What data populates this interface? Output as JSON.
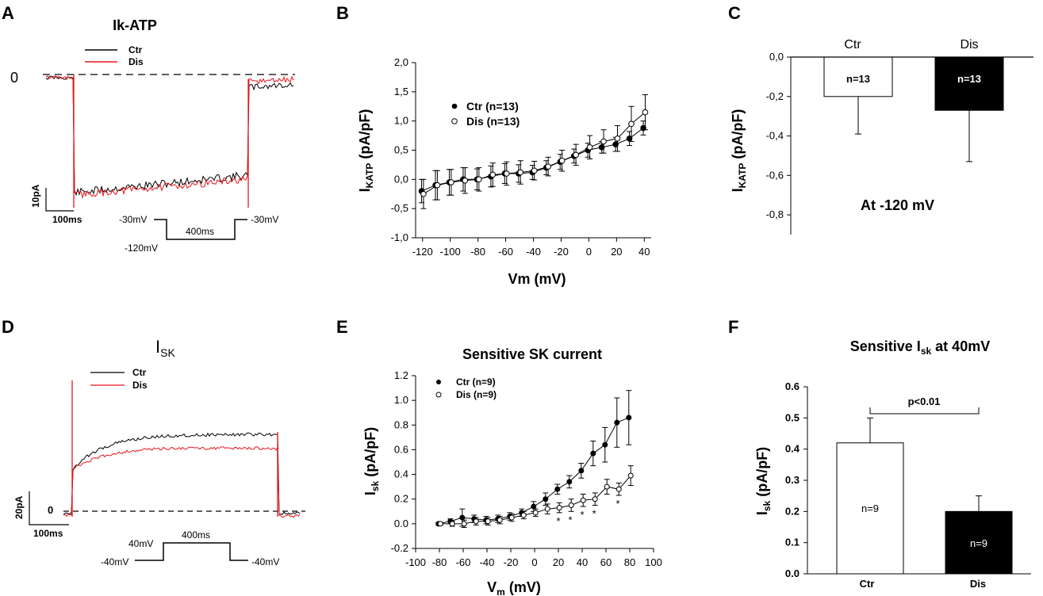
{
  "panel_labels": [
    "A",
    "B",
    "C",
    "D",
    "E",
    "F"
  ],
  "colors": {
    "ctr": "#000000",
    "dis": "#e8151b"
  },
  "traceA": {
    "title": "Ik-ATP",
    "zero_label": "0",
    "legend": [
      "Ctr",
      "Dis"
    ],
    "scale": {
      "y_label": "10pA",
      "x_label": "100ms"
    },
    "protocol": {
      "hold_left": "-30mV",
      "step": "-120mV",
      "duration": "400ms",
      "hold_right": "-30mV"
    }
  },
  "traceD": {
    "title": "I",
    "title_sub": "SK",
    "zero_label": "0",
    "legend": [
      "Ctr",
      "Dis"
    ],
    "scale": {
      "y_label": "20pA",
      "x_label": "100ms"
    },
    "protocol": {
      "step": "40mV",
      "duration": "400ms",
      "hold_left": "-40mV",
      "hold_right": "-40mV"
    }
  },
  "chart_data": [
    {
      "panel": "B",
      "type": "line",
      "title": "",
      "xlabel": "Vm (mV)",
      "ylabel_main": "I",
      "ylabel_sub": "KATP",
      "ylabel_unit": " (pA/pF)",
      "xlim": [
        -125,
        45
      ],
      "ylim": [
        -1.0,
        2.0
      ],
      "xticks": [
        -120,
        -100,
        -80,
        -60,
        -40,
        -20,
        0,
        20,
        40
      ],
      "yticks": [
        "-1,0",
        "-0,5",
        "0,0",
        "0,5",
        "1,0",
        "1,5",
        "2,0"
      ],
      "ytick_values": [
        -1.0,
        -0.5,
        0.0,
        0.5,
        1.0,
        1.5,
        2.0
      ],
      "x": [
        -120,
        -110,
        -100,
        -90,
        -80,
        -70,
        -60,
        -50,
        -40,
        -30,
        -20,
        -10,
        0,
        10,
        20,
        30,
        40
      ],
      "series": [
        {
          "name": "Ctr (n=13)",
          "marker": "filled",
          "values": [
            -0.2,
            -0.1,
            -0.05,
            0.0,
            0.0,
            0.05,
            0.1,
            0.1,
            0.12,
            0.2,
            0.3,
            0.4,
            0.5,
            0.55,
            0.6,
            0.7,
            0.88
          ],
          "errors": [
            0.2,
            0.25,
            0.22,
            0.2,
            0.18,
            0.18,
            0.17,
            0.15,
            0.12,
            0.12,
            0.13,
            0.12,
            0.12,
            0.1,
            0.12,
            0.12,
            0.12
          ]
        },
        {
          "name": "Dis (n=13)",
          "marker": "open",
          "values": [
            -0.25,
            -0.1,
            -0.05,
            -0.02,
            0.0,
            0.08,
            0.1,
            0.12,
            0.15,
            0.22,
            0.32,
            0.42,
            0.55,
            0.65,
            0.7,
            0.95,
            1.15
          ],
          "errors": [
            0.25,
            0.25,
            0.22,
            0.22,
            0.2,
            0.2,
            0.2,
            0.2,
            0.16,
            0.16,
            0.18,
            0.18,
            0.2,
            0.2,
            0.22,
            0.3,
            0.3
          ]
        }
      ]
    },
    {
      "panel": "C",
      "type": "bar",
      "categories": [
        "Ctr",
        "Dis"
      ],
      "values": [
        -0.2,
        -0.27
      ],
      "errors": [
        0.19,
        0.26
      ],
      "bar_labels": [
        "n=13",
        "n=13"
      ],
      "ylabel_main": "I",
      "ylabel_sub": "KATP",
      "ylabel_unit": " (pA/pF)",
      "ylim": [
        -0.9,
        0.0
      ],
      "yticks": [
        "0,0",
        "-0,2",
        "-0,4",
        "-0,6",
        "-0,8"
      ],
      "ytick_values": [
        0.0,
        -0.2,
        -0.4,
        -0.6,
        -0.8
      ],
      "annotation": "At -120 mV"
    },
    {
      "panel": "E",
      "type": "line",
      "title": "Sensitive SK current",
      "xlabel_main": "V",
      "xlabel_sub": "m",
      "xlabel_unit": " (mV)",
      "ylabel_main": "I",
      "ylabel_sub": "sk",
      "ylabel_unit": " (pA/pF)",
      "xlim": [
        -100,
        100
      ],
      "ylim": [
        -0.2,
        1.2
      ],
      "xticks": [
        -100,
        -80,
        -60,
        -40,
        -20,
        0,
        20,
        40,
        60,
        80,
        100
      ],
      "yticks": [
        "-0.2",
        "0.0",
        "0.2",
        "0.4",
        "0.6",
        "0.8",
        "1.0",
        "1.2"
      ],
      "ytick_values": [
        -0.2,
        0.0,
        0.2,
        0.4,
        0.6,
        0.8,
        1.0,
        1.2
      ],
      "x": [
        -80,
        -70,
        -60,
        -50,
        -40,
        -30,
        -20,
        -10,
        0,
        10,
        20,
        30,
        40,
        50,
        60,
        70,
        80
      ],
      "series": [
        {
          "name": "Ctr (n=9)",
          "marker": "filled",
          "values": [
            0.0,
            0.02,
            0.05,
            0.04,
            0.03,
            0.04,
            0.06,
            0.09,
            0.14,
            0.2,
            0.28,
            0.34,
            0.43,
            0.57,
            0.64,
            0.82,
            0.86
          ],
          "errors": [
            0.01,
            0.02,
            0.07,
            0.03,
            0.03,
            0.03,
            0.03,
            0.03,
            0.04,
            0.05,
            0.04,
            0.05,
            0.06,
            0.1,
            0.14,
            0.2,
            0.22
          ]
        },
        {
          "name": "Dis (n=9)",
          "marker": "open",
          "values": [
            0.0,
            0.0,
            0.0,
            0.02,
            0.02,
            0.03,
            0.05,
            0.07,
            0.09,
            0.12,
            0.13,
            0.15,
            0.19,
            0.2,
            0.3,
            0.28,
            0.39
          ],
          "errors": [
            0.01,
            0.02,
            0.03,
            0.03,
            0.03,
            0.03,
            0.03,
            0.03,
            0.03,
            0.04,
            0.04,
            0.05,
            0.05,
            0.05,
            0.06,
            0.05,
            0.08
          ]
        }
      ],
      "significance": {
        "x": [
          20,
          30,
          40,
          50,
          70
        ],
        "symbol": "*"
      }
    },
    {
      "panel": "F",
      "type": "bar",
      "title_main": "Sensitive I",
      "title_sub": "sk",
      "title_rest": " at 40mV",
      "categories": [
        "Ctr",
        "Dis"
      ],
      "values": [
        0.42,
        0.2
      ],
      "errors": [
        0.08,
        0.05
      ],
      "bar_labels": [
        "n=9",
        "n=9"
      ],
      "ylabel_main": "I",
      "ylabel_sub": "sk",
      "ylabel_unit": " (pA/pF)",
      "ylim": [
        0.0,
        0.6
      ],
      "yticks": [
        "0.0",
        "0.1",
        "0.2",
        "0.3",
        "0.4",
        "0.5",
        "0.6"
      ],
      "ytick_values": [
        0.0,
        0.1,
        0.2,
        0.3,
        0.4,
        0.5,
        0.6
      ],
      "significance": "p<0.01"
    }
  ]
}
